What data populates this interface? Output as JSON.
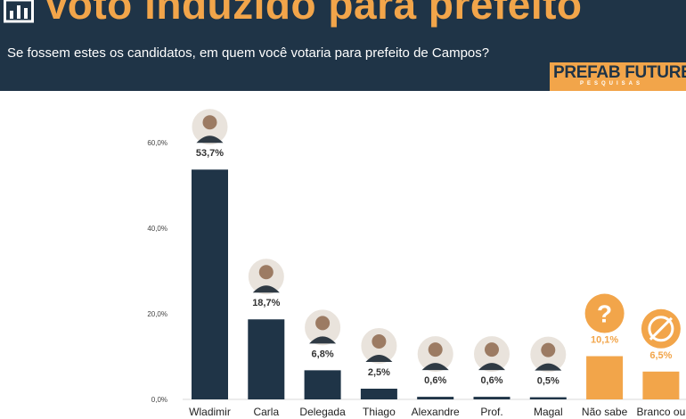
{
  "header": {
    "title": "Voto induzido para prefeito",
    "subtitle": "Se fossem estes os candidatos, em quem você votaria para prefeito de Campos?",
    "logo_main": "PREFAB FUTURE",
    "logo_sub": "PESQUISAS",
    "title_icon": "bar-chart-icon"
  },
  "colors": {
    "header_bg": "#1f3447",
    "accent": "#f2a54a",
    "bar_candidate": "#1f3447",
    "bar_other": "#f2a54a"
  },
  "chart_data": {
    "type": "bar",
    "categories": [
      "Wladimir",
      "Carla",
      "Delegada",
      "Thiago",
      "Alexandre",
      "Prof.",
      "Magal",
      "Não sabe",
      "Branco ou"
    ],
    "values": [
      53.7,
      18.7,
      6.8,
      2.5,
      0.6,
      0.6,
      0.5,
      10.1,
      6.5
    ],
    "value_labels": [
      "53,7%",
      "18,7%",
      "6,8%",
      "2,5%",
      "0,6%",
      "0,6%",
      "0,5%",
      "10,1%",
      "6,5%"
    ],
    "bar_colors": [
      "#1f3447",
      "#1f3447",
      "#1f3447",
      "#1f3447",
      "#1f3447",
      "#1f3447",
      "#1f3447",
      "#f2a54a",
      "#f2a54a"
    ],
    "icons": [
      "candidate-photo",
      "candidate-photo",
      "candidate-photo",
      "candidate-photo",
      "candidate-photo",
      "candidate-photo",
      "candidate-photo",
      "question-mark-icon",
      "blocked-circle-icon"
    ],
    "yticks": [
      0,
      20,
      40,
      60
    ],
    "ytick_labels": [
      "0,0%",
      "20,0%",
      "40,0%",
      "60,0%"
    ],
    "ylim": [
      0,
      60
    ],
    "grid": false,
    "legend": "none"
  }
}
